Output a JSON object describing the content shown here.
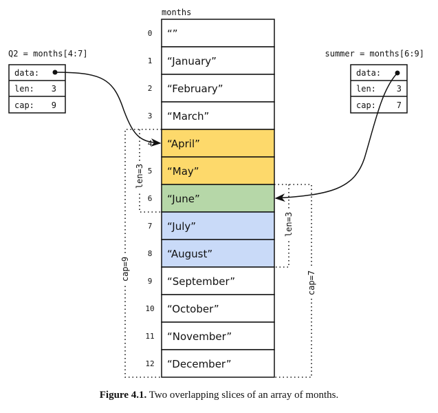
{
  "array": {
    "name": "months",
    "cells": [
      "“”",
      "“January”",
      "“February”",
      "“March”",
      "“April”",
      "“May”",
      "“June”",
      "“July”",
      "“August”",
      "“September”",
      "“October”",
      "“November”",
      "“December”"
    ],
    "indices": [
      "0",
      "1",
      "2",
      "3",
      "4",
      "5",
      "6",
      "7",
      "8",
      "9",
      "10",
      "11",
      "12"
    ]
  },
  "slices": [
    {
      "label": "Q2 = months[4:7]",
      "fields": [
        {
          "k": "data:",
          "v": ""
        },
        {
          "k": "len:",
          "v": "3"
        },
        {
          "k": "cap:",
          "v": "9"
        }
      ],
      "len_label": "len=3",
      "cap_label": "cap=9",
      "start": 4,
      "len": 3,
      "cap": 9
    },
    {
      "label": "summer = months[6:9]",
      "fields": [
        {
          "k": "data:",
          "v": ""
        },
        {
          "k": "len:",
          "v": "3"
        },
        {
          "k": "cap:",
          "v": "7"
        }
      ],
      "len_label": "len=3",
      "cap_label": "cap=7",
      "start": 6,
      "len": 3,
      "cap": 7
    }
  ],
  "colors": {
    "q2_only": "#fdd96b",
    "overlap": "#b6d7a8",
    "summer_only": "#c9daf8"
  },
  "caption": {
    "bold": "Figure 4.1.",
    "text": " Two overlapping slices of an array of months."
  }
}
